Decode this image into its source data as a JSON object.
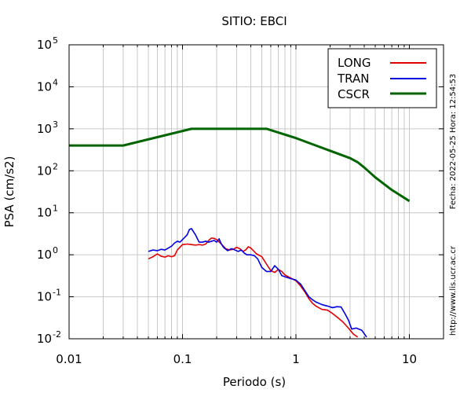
{
  "chart_data": {
    "type": "line",
    "title": "SITIO: EBCI",
    "xlabel": "Periodo (s)",
    "ylabel": "PSA (cm/s2)",
    "x_scale": "log",
    "y_scale": "log",
    "xlim": [
      0.01,
      20
    ],
    "ylim": [
      0.01,
      100000
    ],
    "x_ticks": [
      {
        "value": 0.01,
        "label": "0.01"
      },
      {
        "value": 0.1,
        "label": "0.1"
      },
      {
        "value": 1,
        "label": "1"
      },
      {
        "value": 10,
        "label": "10"
      }
    ],
    "y_ticks": [
      {
        "value": 0.01,
        "base": "10",
        "exp": "-2"
      },
      {
        "value": 0.1,
        "base": "10",
        "exp": "-1"
      },
      {
        "value": 1,
        "base": "10",
        "exp": "0"
      },
      {
        "value": 10,
        "base": "10",
        "exp": "1"
      },
      {
        "value": 100,
        "base": "10",
        "exp": "2"
      },
      {
        "value": 1000,
        "base": "10",
        "exp": "3"
      },
      {
        "value": 10000,
        "base": "10",
        "exp": "4"
      },
      {
        "value": 100000,
        "base": "10",
        "exp": "5"
      }
    ],
    "grid": true,
    "legend_position": "top-right",
    "side_labels": {
      "date": "Fecha: 2022-05-25 Hora: 12:54:53",
      "url": "http://www.lis.ucr.ac.cr"
    },
    "series": [
      {
        "name": "LONG",
        "color": "#e00000",
        "points": [
          [
            0.05,
            0.8
          ],
          [
            0.055,
            0.9
          ],
          [
            0.06,
            1.05
          ],
          [
            0.065,
            0.92
          ],
          [
            0.07,
            0.88
          ],
          [
            0.075,
            0.95
          ],
          [
            0.08,
            0.9
          ],
          [
            0.085,
            0.95
          ],
          [
            0.09,
            1.3
          ],
          [
            0.1,
            1.75
          ],
          [
            0.11,
            1.8
          ],
          [
            0.12,
            1.75
          ],
          [
            0.13,
            1.7
          ],
          [
            0.14,
            1.75
          ],
          [
            0.15,
            1.7
          ],
          [
            0.16,
            1.8
          ],
          [
            0.17,
            2.2
          ],
          [
            0.18,
            2.5
          ],
          [
            0.19,
            2.45
          ],
          [
            0.2,
            2.3
          ],
          [
            0.22,
            1.8
          ],
          [
            0.24,
            1.4
          ],
          [
            0.26,
            1.3
          ],
          [
            0.28,
            1.35
          ],
          [
            0.3,
            1.5
          ],
          [
            0.32,
            1.4
          ],
          [
            0.34,
            1.2
          ],
          [
            0.36,
            1.3
          ],
          [
            0.38,
            1.55
          ],
          [
            0.4,
            1.45
          ],
          [
            0.45,
            1.05
          ],
          [
            0.5,
            0.9
          ],
          [
            0.55,
            0.6
          ],
          [
            0.6,
            0.42
          ],
          [
            0.65,
            0.38
          ],
          [
            0.7,
            0.45
          ],
          [
            0.75,
            0.4
          ],
          [
            0.8,
            0.33
          ],
          [
            0.9,
            0.28
          ],
          [
            1.0,
            0.24
          ],
          [
            1.1,
            0.18
          ],
          [
            1.2,
            0.13
          ],
          [
            1.3,
            0.09
          ],
          [
            1.4,
            0.07
          ],
          [
            1.5,
            0.06
          ],
          [
            1.7,
            0.05
          ],
          [
            1.9,
            0.048
          ],
          [
            2.1,
            0.04
          ],
          [
            2.3,
            0.033
          ],
          [
            2.6,
            0.025
          ],
          [
            2.9,
            0.018
          ],
          [
            3.2,
            0.013
          ],
          [
            3.5,
            0.011
          ]
        ]
      },
      {
        "name": "TRAN",
        "color": "#0000e0",
        "points": [
          [
            0.05,
            1.2
          ],
          [
            0.055,
            1.3
          ],
          [
            0.06,
            1.25
          ],
          [
            0.065,
            1.35
          ],
          [
            0.07,
            1.3
          ],
          [
            0.075,
            1.45
          ],
          [
            0.08,
            1.6
          ],
          [
            0.085,
            1.9
          ],
          [
            0.09,
            2.1
          ],
          [
            0.095,
            2.0
          ],
          [
            0.1,
            2.3
          ],
          [
            0.11,
            3.0
          ],
          [
            0.115,
            4.0
          ],
          [
            0.12,
            4.2
          ],
          [
            0.13,
            3.0
          ],
          [
            0.14,
            2.0
          ],
          [
            0.15,
            2.0
          ],
          [
            0.16,
            2.1
          ],
          [
            0.17,
            2.0
          ],
          [
            0.18,
            2.1
          ],
          [
            0.19,
            2.2
          ],
          [
            0.2,
            2.0
          ],
          [
            0.21,
            2.4
          ],
          [
            0.22,
            1.8
          ],
          [
            0.23,
            1.5
          ],
          [
            0.25,
            1.25
          ],
          [
            0.27,
            1.4
          ],
          [
            0.29,
            1.3
          ],
          [
            0.31,
            1.2
          ],
          [
            0.33,
            1.3
          ],
          [
            0.35,
            1.1
          ],
          [
            0.37,
            1.0
          ],
          [
            0.4,
            1.0
          ],
          [
            0.43,
            0.95
          ],
          [
            0.46,
            0.8
          ],
          [
            0.5,
            0.5
          ],
          [
            0.55,
            0.4
          ],
          [
            0.6,
            0.4
          ],
          [
            0.65,
            0.55
          ],
          [
            0.7,
            0.45
          ],
          [
            0.75,
            0.32
          ],
          [
            0.8,
            0.3
          ],
          [
            0.9,
            0.27
          ],
          [
            1.0,
            0.25
          ],
          [
            1.1,
            0.2
          ],
          [
            1.2,
            0.14
          ],
          [
            1.3,
            0.1
          ],
          [
            1.4,
            0.085
          ],
          [
            1.5,
            0.075
          ],
          [
            1.7,
            0.065
          ],
          [
            1.9,
            0.06
          ],
          [
            2.1,
            0.055
          ],
          [
            2.3,
            0.058
          ],
          [
            2.5,
            0.057
          ],
          [
            2.7,
            0.04
          ],
          [
            2.9,
            0.028
          ],
          [
            3.1,
            0.017
          ],
          [
            3.4,
            0.018
          ],
          [
            3.8,
            0.016
          ],
          [
            4.2,
            0.011
          ]
        ]
      },
      {
        "name": "CSCR",
        "color": "#006400",
        "points": [
          [
            0.01,
            400
          ],
          [
            0.03,
            400
          ],
          [
            0.12,
            1000
          ],
          [
            0.55,
            1000
          ],
          [
            1.0,
            600
          ],
          [
            1.5,
            400
          ],
          [
            2.0,
            300
          ],
          [
            3.0,
            200
          ],
          [
            3.5,
            160
          ],
          [
            4.0,
            120
          ],
          [
            5.0,
            70
          ],
          [
            7.0,
            35
          ],
          [
            10.0,
            19
          ]
        ]
      }
    ]
  }
}
